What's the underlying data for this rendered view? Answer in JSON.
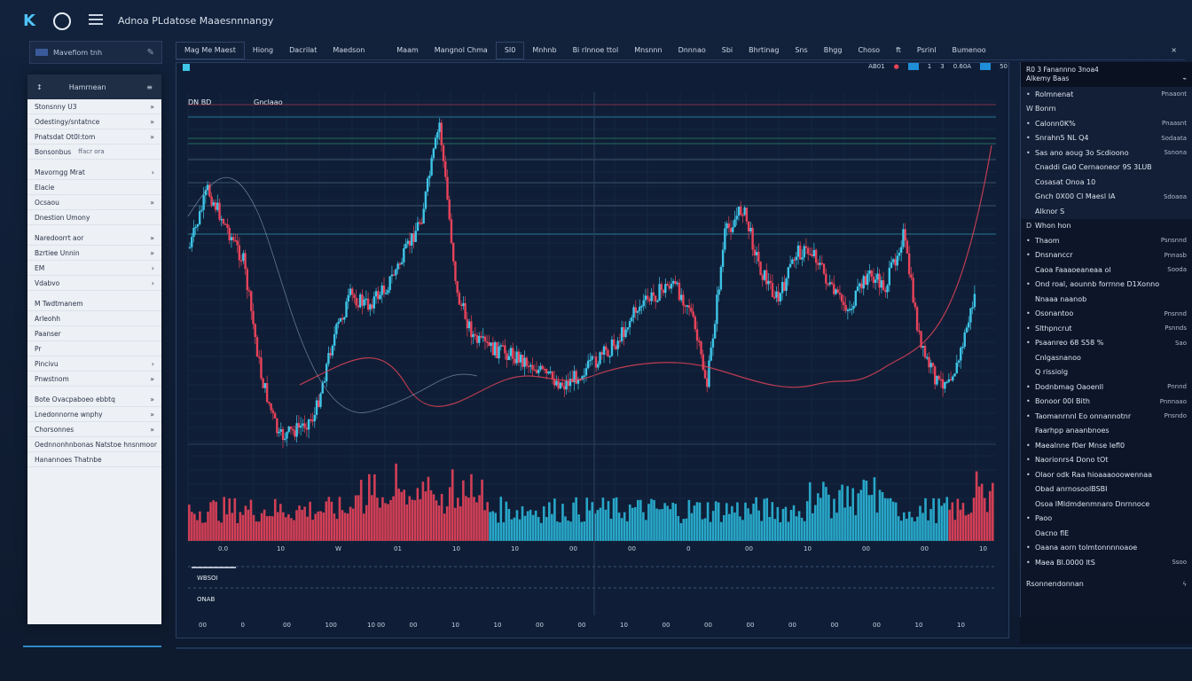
{
  "app": {
    "title": "Adnoa PLdatose Maaesnnnangy",
    "logo_icon": "k-logo-icon"
  },
  "left": {
    "header": "Mavefiom tnh",
    "panel_title": "Hamrnean",
    "items": [
      {
        "label": "Stonsnny U3",
        "chev": "»"
      },
      {
        "label": "Odestingy/sntatnce",
        "chev": "»"
      },
      {
        "label": "Pnatsdat Ot0l:tom",
        "chev": "»"
      },
      {
        "label": "Bonsonbus",
        "sub": "ffacr ora"
      },
      {
        "label": "Mavorngg Mrat",
        "chev": "›"
      },
      {
        "label": "Elacie"
      },
      {
        "label": "Ocsaou",
        "chev": "»"
      },
      {
        "label": "Dnestion Umony"
      },
      {
        "label": "Naredoorrt aor",
        "chev": "»"
      },
      {
        "label": "Bzrtiee Unnin",
        "chev": "»"
      },
      {
        "label": "EM",
        "chev": "›"
      },
      {
        "label": "Vdabvo",
        "chev": "›"
      },
      {
        "label": "M Twdtmanem"
      },
      {
        "label": "Arleohh"
      },
      {
        "label": "Paanser"
      },
      {
        "label": "Pr"
      },
      {
        "label": "Pincivu",
        "chev": "›"
      },
      {
        "label": "Pnwstnom",
        "chev": "»"
      },
      {
        "label": "Bote Ovacpaboeo ebbtq",
        "chev": "»"
      },
      {
        "label": "Lnedonnorne wnphy",
        "chev": "»"
      },
      {
        "label": "Chorsonnes",
        "chev": "»"
      },
      {
        "label": "Oednnonhnbonas Natstoe hnsnmoor"
      },
      {
        "label": "Hanannoes Thatnbe"
      }
    ]
  },
  "toolbar": {
    "items": [
      "Mag Me Maest",
      "Hiong",
      "Dacrilat",
      "Maedson",
      "",
      "Maam",
      "Mangnol Chma",
      "SI0",
      "Mnhnb",
      "Bi rlnnoe ttol",
      "Mnsnnn",
      "Dnnnao",
      "Sbi",
      "Bhrtinag",
      "Sns",
      "Bhgg",
      "Choso",
      "ft",
      "Psrinl",
      "Bumenoo"
    ],
    "close_label": "×"
  },
  "chart": {
    "legend_left": "DN BD",
    "legend_tag": "Gnclaao",
    "right_ticker": "AB01",
    "right_vals": [
      "1",
      "3",
      "0.60A",
      "50"
    ],
    "price_labels": [
      "WBSOI",
      "ONAB"
    ],
    "volume_axis": [
      "0.0",
      "10",
      "W",
      "01",
      "10",
      "10",
      "00",
      "00",
      "0",
      "00",
      "10",
      "00",
      "00",
      "10"
    ],
    "time_axis": [
      "00",
      "0",
      "00",
      "100",
      "10 00",
      "00",
      "10",
      "10",
      "00",
      "00",
      "10",
      "00",
      "00",
      "00",
      "00",
      "00",
      "00",
      "10",
      "10"
    ]
  },
  "chart_data": {
    "type": "line",
    "series": [
      {
        "name": "",
        "values": [
          195,
          130,
          170,
          210,
          340,
          410,
          400,
          385,
          300,
          250,
          260,
          240,
          205,
          160,
          55,
          250,
          300,
          310,
          315,
          325,
          340,
          350,
          335,
          320,
          300,
          265,
          250,
          235,
          260,
          350,
          180,
          150,
          220,
          255,
          200,
          200,
          245,
          265,
          225,
          240,
          180,
          310,
          350,
          330,
          250
        ]
      }
    ]
  },
  "right": {
    "header_l": "R0 3 Fanannno 3noa4",
    "header_sub": "Alkemy Baas",
    "items": [
      {
        "b": "•",
        "label": "Rolmnenat",
        "v": "Pnaaont"
      },
      {
        "b": "W",
        "label": "Bonrn"
      },
      {
        "b": "•",
        "label": "Calonn0K%",
        "v": "Pnaasnt"
      },
      {
        "b": "•",
        "label": "Snrahn5 NL Q4",
        "v": "Sodaata"
      },
      {
        "b": "•",
        "label": "Sas ano aoug 3o Scdioono",
        "v": "Ssnona"
      },
      {
        "b": "",
        "label": "Cnaddi Ga0 Cernaoneor 9S 3LUB"
      },
      {
        "b": "",
        "label": "Cosasat Onoa 10"
      },
      {
        "b": "",
        "label": "Gnch 0X00 Cl Maesl IA",
        "v": "Sdoaoa"
      },
      {
        "b": "",
        "label": "Alknor S"
      },
      {
        "b": "D",
        "label": "Whon hon",
        "v": ""
      },
      {
        "b": "•",
        "label": "Thaom",
        "v": "Psnsnnd"
      },
      {
        "b": "•",
        "label": "Dnsnanccr",
        "v": "Pnnasb"
      },
      {
        "b": "",
        "label": "Caoa Faaaoeaneaa ol",
        "v": "Sooda"
      },
      {
        "b": "•",
        "label": "Ond roal, aounnb forrnne D1Xonno"
      },
      {
        "b": "",
        "label": "Nnaaa naanob"
      },
      {
        "b": "•",
        "label": "Osonantoo",
        "v": "Pnsnnd"
      },
      {
        "b": "•",
        "label": "Slthpncrut",
        "v": "Psnnds"
      },
      {
        "b": "•",
        "label": "Psaanreo 68 S58 %",
        "v": "Sao"
      },
      {
        "b": "",
        "label": "Cnlgasnanoo"
      },
      {
        "b": "",
        "label": "Q rissiolg"
      },
      {
        "b": "•",
        "label": "Dodnbmag Oaoenll",
        "v": "Pnnnd"
      },
      {
        "b": "•",
        "label": "Bonoor 00l Bith",
        "v": "Pnnnaao"
      },
      {
        "b": "•",
        "label": "Taomanrnnl Eo onnannotnr",
        "v": "Pnsndo"
      },
      {
        "b": "",
        "label": "Faarhpp anaanbnoes"
      },
      {
        "b": "•",
        "label": "Maealnne f0er Mnse Iefl0",
        "v": ""
      },
      {
        "b": "•",
        "label": "Naorionrs4 Dono tOt"
      },
      {
        "b": "•",
        "label": "Olaor odk Raa hioaaaooowennaa"
      },
      {
        "b": "",
        "label": "Obad anrnosoolBSBI"
      },
      {
        "b": "",
        "label": "Osoa lMldmdenmnaro Dnrnnoce"
      },
      {
        "b": "•",
        "label": "Paoo"
      },
      {
        "b": "",
        "label": "Oacno flE"
      },
      {
        "b": "•",
        "label": "Oaana aorn tolmtonnnnoaoe"
      },
      {
        "b": "•",
        "label": "Maea Bl.0000 ltS",
        "v": "Ssoo"
      }
    ],
    "footer": "Rsonnendonnan"
  }
}
